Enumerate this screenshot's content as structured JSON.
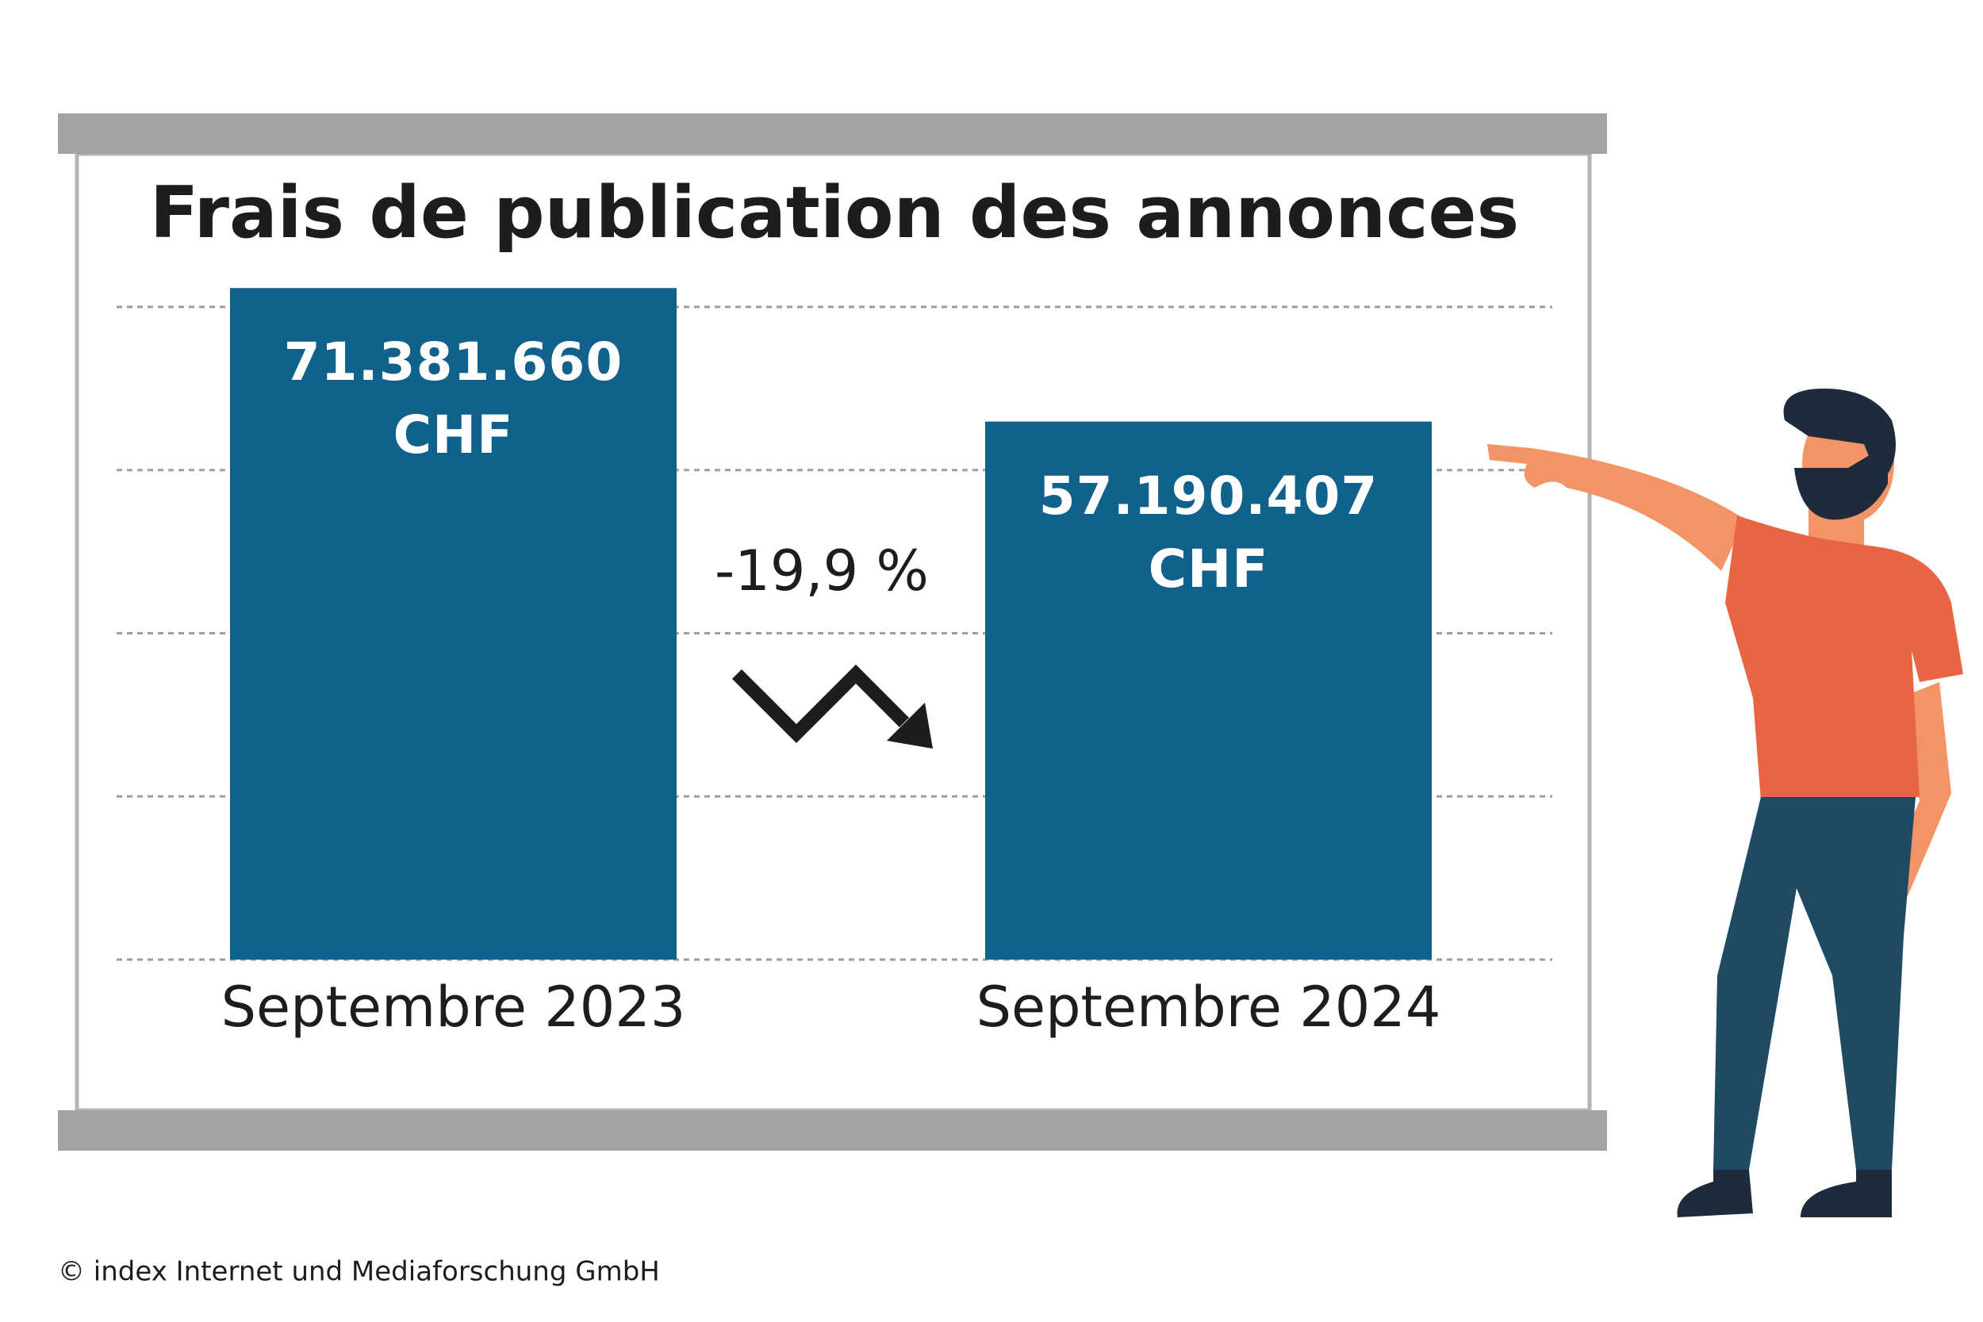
{
  "chart_data": {
    "type": "bar",
    "title": "Frais de publication des annonces",
    "categories": [
      "Septembre 2023",
      "Septembre 2024"
    ],
    "values": [
      71381660,
      57190407
    ],
    "value_labels": [
      "71.381.660\nCHF",
      "57.190.407\nCHF"
    ],
    "color": "#10628c",
    "ylim": [
      0,
      80000000
    ],
    "annotation": "-19,9 %",
    "source": "© index Internet und Mediaforschung GmbH"
  }
}
